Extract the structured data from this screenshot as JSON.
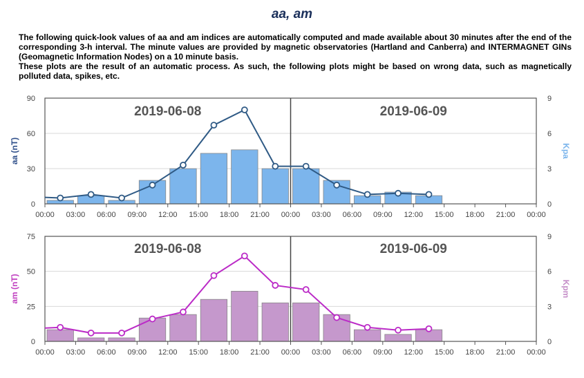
{
  "page": {
    "title": "aa, am",
    "intro_p1": "The following quick-look values of aa and am indices are automatically computed and made available about 30 minutes after the end of the corresponding 3-h interval. The minute values are provided by magnetic observatories (Hartland and Canberra) and INTERMAGNET GINs (Geomagnetic Information Nodes) on a 10 minute basis.",
    "intro_p2": "These plots are the result of an automatic process. As such, the following plots might be based on wrong data, such as magnetically polluted data, spikes, etc."
  },
  "chart_data": [
    {
      "type": "bar+line",
      "days": [
        "2019-06-08",
        "2019-06-09"
      ],
      "x_tick_labels": [
        "00:00",
        "03:00",
        "06:00",
        "09:00",
        "12:00",
        "15:00",
        "18:00",
        "21:00",
        "00:00",
        "03:00",
        "06:00",
        "09:00",
        "12:00",
        "15:00",
        "18:00",
        "21:00",
        "00:00"
      ],
      "x_hours_range": [
        0,
        48
      ],
      "left_axis": {
        "label": "aa (nT)",
        "ticks": [
          "0",
          "30",
          "60",
          "90"
        ],
        "range": [
          0,
          90
        ],
        "color": "#2f4f8a"
      },
      "right_axis": {
        "label": "Kpa",
        "ticks": [
          "0",
          "3",
          "6",
          "9"
        ],
        "range": [
          0,
          9
        ],
        "color": "#7cb5ec"
      },
      "bars": {
        "name": "Kpa",
        "color": "#7cb5ec",
        "values": [
          0.3,
          0.7,
          0.3,
          2.0,
          3.0,
          4.3,
          4.6,
          3.0,
          3.0,
          2.0,
          0.7,
          1.0,
          0.7,
          null,
          null,
          null
        ]
      },
      "line": {
        "name": "aa",
        "color": "#2f5a85",
        "x_hours": [
          -1.5,
          1.5,
          4.5,
          7.5,
          10.5,
          13.5,
          16.5,
          19.5,
          22.5,
          25.5,
          28.5,
          31.5,
          34.5,
          37.5
        ],
        "values": [
          6,
          5,
          8,
          5,
          16,
          33,
          67,
          80,
          32,
          32,
          16,
          8,
          9,
          8
        ],
        "markers_from_index": 1
      }
    },
    {
      "type": "bar+line",
      "days": [
        "2019-06-08",
        "2019-06-09"
      ],
      "x_tick_labels": [
        "00:00",
        "03:00",
        "06:00",
        "09:00",
        "12:00",
        "15:00",
        "18:00",
        "21:00",
        "00:00",
        "03:00",
        "06:00",
        "09:00",
        "12:00",
        "15:00",
        "18:00",
        "21:00",
        "00:00"
      ],
      "x_hours_range": [
        0,
        48
      ],
      "left_axis": {
        "label": "am (nT)",
        "ticks": [
          "0",
          "25",
          "50",
          "75"
        ],
        "range": [
          0,
          75
        ],
        "color": "#c040c0"
      },
      "right_axis": {
        "label": "Kpm",
        "ticks": [
          "0",
          "3",
          "6",
          "9"
        ],
        "range": [
          0,
          9
        ],
        "color": "#c58ec8"
      },
      "bars": {
        "name": "Kpm",
        "color": "#c598cc",
        "values": [
          1.0,
          0.3,
          0.3,
          2.0,
          2.3,
          3.6,
          4.3,
          3.3,
          3.3,
          2.3,
          1.0,
          0.6,
          1.0,
          null,
          null,
          null
        ]
      },
      "line": {
        "name": "am",
        "color": "#bb2bc7",
        "x_hours": [
          -1.5,
          1.5,
          4.5,
          7.5,
          10.5,
          13.5,
          16.5,
          19.5,
          22.5,
          25.5,
          28.5,
          31.5,
          34.5,
          37.5
        ],
        "values": [
          9,
          10,
          6,
          6,
          16,
          21,
          47,
          61,
          40,
          37,
          17,
          10,
          8,
          9
        ],
        "markers_from_index": 1
      }
    }
  ]
}
